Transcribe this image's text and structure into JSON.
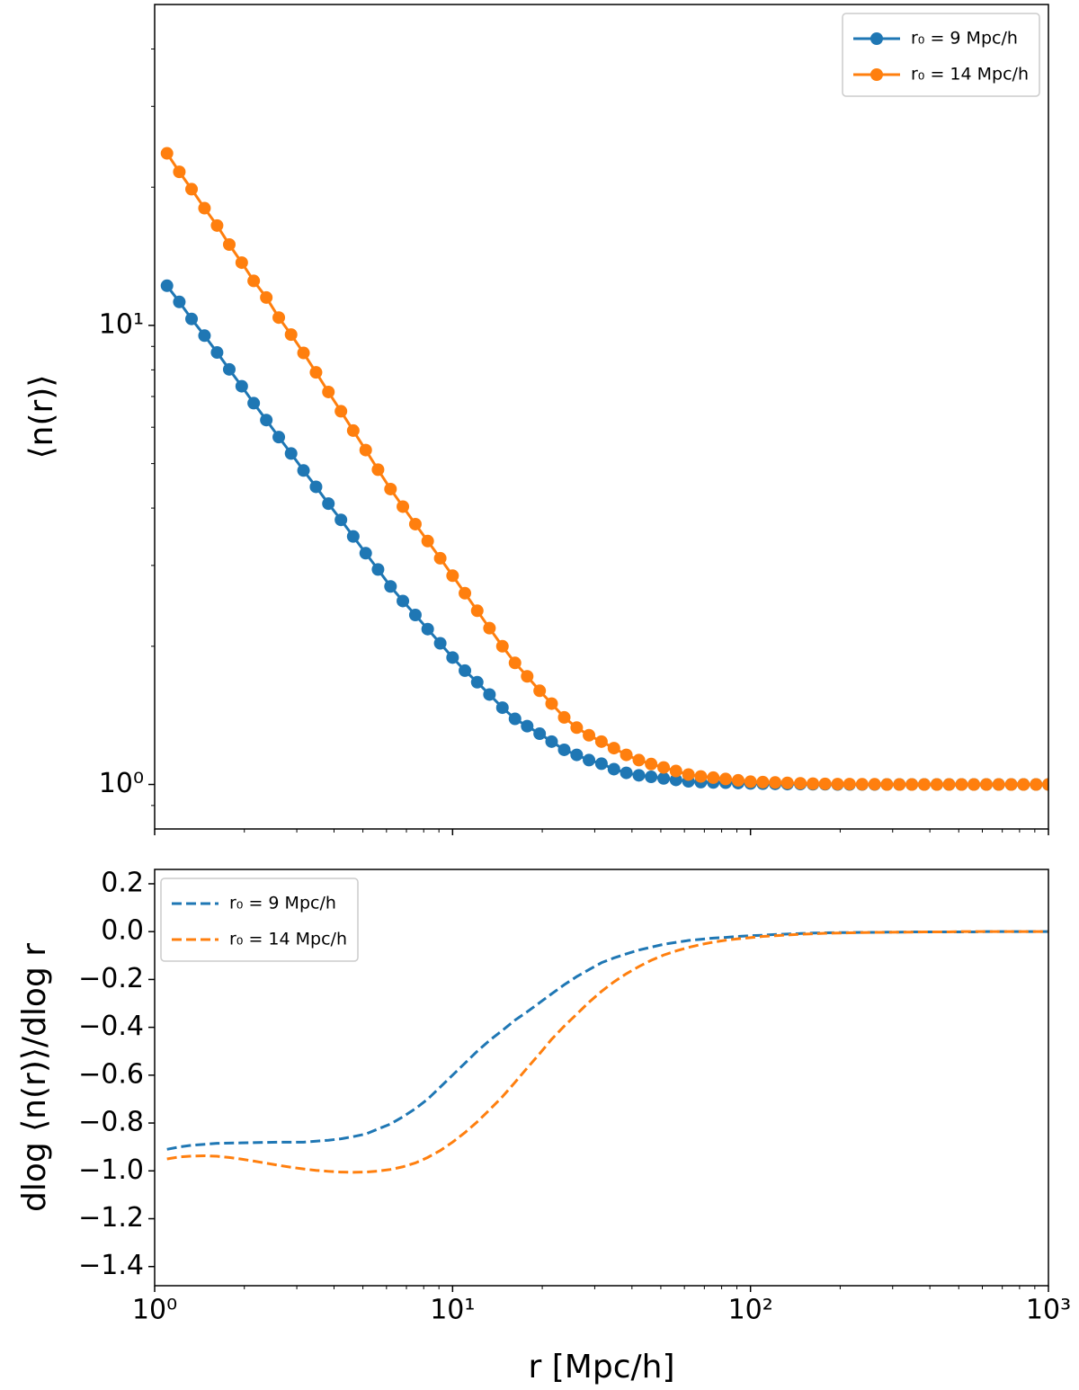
{
  "chart_data": [
    {
      "type": "line",
      "xscale": "log",
      "yscale": "log",
      "marker": true,
      "linestyle": "solid",
      "legend": "upper right",
      "ylabel": "⟨n(r)⟩",
      "xticklabels": false,
      "xlim": [
        1,
        1000
      ],
      "ylim": [
        0.8,
        50
      ],
      "xticks": [
        1,
        10,
        100,
        1000
      ],
      "xminorticks": [
        2,
        3,
        4,
        5,
        6,
        7,
        8,
        9,
        20,
        30,
        40,
        50,
        60,
        70,
        80,
        90,
        200,
        300,
        400,
        500,
        600,
        700,
        800,
        900
      ],
      "yticks": [
        {
          "value": 1,
          "label": "10⁰"
        },
        {
          "value": 10,
          "label": "10¹"
        }
      ],
      "yminorticks": [
        0.9,
        2,
        3,
        4,
        5,
        6,
        7,
        8,
        9,
        20,
        30,
        40
      ],
      "x": [
        1.1,
        1.21,
        1.33,
        1.47,
        1.62,
        1.78,
        1.96,
        2.15,
        2.37,
        2.61,
        2.87,
        3.16,
        3.48,
        3.83,
        4.22,
        4.64,
        5.11,
        5.62,
        6.19,
        6.81,
        7.5,
        8.25,
        9.09,
        10,
        11,
        12.1,
        13.3,
        14.7,
        16.2,
        17.8,
        19.6,
        21.5,
        23.7,
        26.1,
        28.7,
        31.6,
        34.8,
        38.3,
        42.2,
        46.4,
        51.1,
        56.2,
        61.9,
        68.1,
        75,
        82.5,
        90.9,
        100,
        110,
        121,
        133,
        147,
        162,
        178,
        196,
        215,
        237,
        261,
        287,
        316,
        348,
        383,
        422,
        464,
        511,
        562,
        619,
        681,
        750,
        825,
        909,
        1000
      ],
      "series": [
        {
          "name": "r₀ = 9 Mpc/h",
          "color": "#1f77b4",
          "values": [
            12.2,
            11.25,
            10.33,
            9.5,
            8.73,
            8.02,
            7.37,
            6.77,
            6.22,
            5.71,
            5.26,
            4.83,
            4.45,
            4.09,
            3.77,
            3.47,
            3.19,
            2.94,
            2.7,
            2.51,
            2.34,
            2.18,
            2.03,
            1.89,
            1.77,
            1.67,
            1.57,
            1.47,
            1.39,
            1.34,
            1.29,
            1.24,
            1.19,
            1.16,
            1.13,
            1.11,
            1.08,
            1.06,
            1.047,
            1.039,
            1.031,
            1.023,
            1.016,
            1.012,
            1.01,
            1.009,
            1.007,
            1.005,
            1.004,
            1.003,
            1.002,
            1.002,
            1.001,
            1.001,
            1,
            1,
            1,
            1,
            1,
            1,
            1,
            1,
            1,
            1,
            1,
            1,
            1,
            1,
            1,
            1,
            1,
            1
          ]
        },
        {
          "name": "r₀ = 14 Mpc/h",
          "color": "#ff7f0e",
          "values": [
            23.7,
            21.6,
            19.8,
            18,
            16.5,
            15,
            13.7,
            12.5,
            11.5,
            10.4,
            9.55,
            8.71,
            7.9,
            7.16,
            6.5,
            5.9,
            5.35,
            4.85,
            4.4,
            4.03,
            3.69,
            3.39,
            3.11,
            2.85,
            2.61,
            2.39,
            2.19,
            2,
            1.84,
            1.72,
            1.6,
            1.5,
            1.4,
            1.33,
            1.28,
            1.24,
            1.2,
            1.16,
            1.13,
            1.108,
            1.089,
            1.07,
            1.051,
            1.041,
            1.035,
            1.028,
            1.021,
            1.014,
            1.012,
            1.01,
            1.008,
            1.006,
            1.004,
            1.003,
            1.002,
            1.002,
            1.001,
            1.001,
            1,
            1,
            1,
            1,
            1,
            1,
            1,
            1,
            1,
            1,
            1,
            1,
            1,
            1
          ]
        }
      ]
    },
    {
      "type": "line",
      "xscale": "log",
      "yscale": "linear",
      "marker": false,
      "linestyle": "dashed",
      "legend": "upper left",
      "ylabel": "dlog ⟨n(r)⟩/dlog r",
      "xlabel": "r [Mpc/h]",
      "xticklabels": true,
      "xlim": [
        1,
        1000
      ],
      "ylim": [
        -1.48,
        0.26
      ],
      "xticks": [
        {
          "value": 1,
          "label": "10⁰"
        },
        {
          "value": 10,
          "label": "10¹"
        },
        {
          "value": 100,
          "label": "10²"
        },
        {
          "value": 1000,
          "label": "10³"
        }
      ],
      "xminorticks": [
        2,
        3,
        4,
        5,
        6,
        7,
        8,
        9,
        20,
        30,
        40,
        50,
        60,
        70,
        80,
        90,
        200,
        300,
        400,
        500,
        600,
        700,
        800,
        900
      ],
      "yticks": [
        0.2,
        {
          "value": 0,
          "label": "0.0"
        },
        {
          "value": -0.2,
          "label": "−0.2"
        },
        {
          "value": -0.4,
          "label": "−0.4"
        },
        {
          "value": -0.6,
          "label": "−0.6"
        },
        {
          "value": -0.8,
          "label": "−0.8"
        },
        {
          "value": -1.0,
          "label": "−1.0"
        },
        {
          "value": -1.2,
          "label": "−1.2"
        },
        {
          "value": -1.4,
          "label": "−1.4"
        }
      ],
      "yminorticks": [],
      "x": [
        1.1,
        1.21,
        1.33,
        1.47,
        1.62,
        1.78,
        1.96,
        2.15,
        2.37,
        2.61,
        2.87,
        3.16,
        3.48,
        3.83,
        4.22,
        4.64,
        5.11,
        5.62,
        6.19,
        6.81,
        7.5,
        8.25,
        9.09,
        10,
        11,
        12.1,
        13.3,
        14.7,
        16.2,
        17.8,
        19.6,
        21.5,
        23.7,
        26.1,
        28.7,
        31.6,
        34.8,
        38.3,
        42.2,
        46.4,
        51.1,
        56.2,
        61.9,
        68.1,
        75,
        82.5,
        90.9,
        100,
        110,
        121,
        133,
        147,
        162,
        178,
        196,
        215,
        237,
        261,
        287,
        316,
        348,
        383,
        422,
        464,
        511,
        562,
        619,
        681,
        750,
        825,
        909,
        1000
      ],
      "series": [
        {
          "name": "r₀ = 9 Mpc/h",
          "color": "#1f77b4",
          "values": [
            -0.91,
            -0.9,
            -0.893,
            -0.889,
            -0.885,
            -0.884,
            -0.883,
            -0.882,
            -0.881,
            -0.88,
            -0.88,
            -0.88,
            -0.876,
            -0.872,
            -0.866,
            -0.857,
            -0.846,
            -0.825,
            -0.804,
            -0.774,
            -0.74,
            -0.7,
            -0.65,
            -0.6,
            -0.55,
            -0.5,
            -0.455,
            -0.413,
            -0.37,
            -0.335,
            -0.297,
            -0.26,
            -0.222,
            -0.188,
            -0.159,
            -0.13,
            -0.11,
            -0.093,
            -0.077,
            -0.065,
            -0.053,
            -0.045,
            -0.037,
            -0.032,
            -0.027,
            -0.024,
            -0.02,
            -0.017,
            -0.015,
            -0.012,
            -0.01,
            -0.008,
            -0.006,
            -0.005,
            -0.004,
            -0.004,
            -0.003,
            -0.003,
            -0.002,
            -0.002,
            -0.001,
            -0.001,
            -0.001,
            -0.001,
            -0.001,
            -0.001,
            0,
            0,
            0,
            0,
            0,
            0
          ]
        },
        {
          "name": "r₀ = 14 Mpc/h",
          "color": "#ff7f0e",
          "values": [
            -0.95,
            -0.942,
            -0.938,
            -0.937,
            -0.939,
            -0.944,
            -0.951,
            -0.959,
            -0.968,
            -0.977,
            -0.985,
            -0.992,
            -0.998,
            -1.002,
            -1.005,
            -1.006,
            -1.005,
            -1.001,
            -0.994,
            -0.983,
            -0.967,
            -0.944,
            -0.915,
            -0.88,
            -0.84,
            -0.795,
            -0.745,
            -0.69,
            -0.63,
            -0.57,
            -0.51,
            -0.45,
            -0.395,
            -0.345,
            -0.295,
            -0.25,
            -0.21,
            -0.176,
            -0.146,
            -0.12,
            -0.098,
            -0.081,
            -0.066,
            -0.054,
            -0.044,
            -0.036,
            -0.03,
            -0.025,
            -0.02,
            -0.017,
            -0.014,
            -0.011,
            -0.009,
            -0.007,
            -0.006,
            -0.005,
            -0.004,
            -0.003,
            -0.003,
            -0.002,
            -0.002,
            -0.001,
            -0.001,
            -0.001,
            0,
            0,
            0,
            0,
            0,
            0,
            0,
            0
          ]
        }
      ]
    }
  ]
}
